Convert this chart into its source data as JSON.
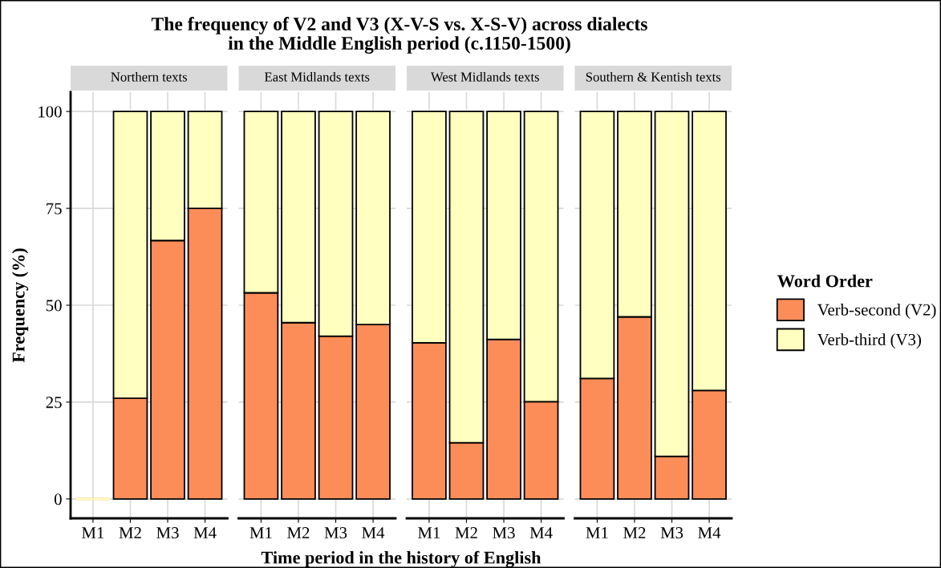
{
  "chart_data": [
    {
      "type": "bar",
      "title": "Northern texts",
      "annotations": [
        "The frequency of V2 and V3 (X-V-S vs. X-S-V) across dialects\nin the Middle English period (c.1150-1500)"
      ],
      "xlabel": "Time period in the history of English",
      "ylabel": "Frequency (%)",
      "categories": [
        "M1",
        "M2",
        "M3",
        "M4"
      ],
      "stacked": true,
      "ylim": [
        -5,
        105
      ],
      "yticks": [
        0,
        25,
        50,
        75,
        100
      ],
      "grid": true,
      "legend": "right",
      "legend_title": "Word Order",
      "series": [
        {
          "name": "Verb-second (V2)",
          "color": "#fc8d59",
          "values": [
            0,
            26,
            66.7,
            75
          ]
        },
        {
          "name": "Verb-third (V3)",
          "color": "#ffffbf",
          "values": [
            0,
            74,
            33.3,
            25
          ]
        }
      ]
    },
    {
      "type": "bar",
      "title": "East Midlands texts",
      "categories": [
        "M1",
        "M2",
        "M3",
        "M4"
      ],
      "stacked": true,
      "ylim": [
        -5,
        105
      ],
      "yticks": [
        0,
        25,
        50,
        75,
        100
      ],
      "grid": true,
      "tick_labels": "x",
      "series": [
        {
          "color": "#fc8d59",
          "values": [
            53.2,
            45.5,
            42,
            45
          ]
        },
        {
          "color": "#ffffbf",
          "values": [
            46.8,
            54.5,
            58,
            55
          ]
        }
      ]
    },
    {
      "type": "bar",
      "title": "West Midlands texts",
      "categories": [
        "M1",
        "M2",
        "M3",
        "M4"
      ],
      "stacked": true,
      "ylim": [
        -5,
        105
      ],
      "yticks": [
        0,
        25,
        50,
        75,
        100
      ],
      "grid": true,
      "tick_labels": "x",
      "series": [
        {
          "color": "#fc8d59",
          "values": [
            40.3,
            14.5,
            41.2,
            25.1
          ]
        },
        {
          "color": "#ffffbf",
          "values": [
            59.7,
            85.5,
            58.8,
            74.9
          ]
        }
      ]
    },
    {
      "type": "bar",
      "title": "Southern & Kentish texts",
      "categories": [
        "M1",
        "M2",
        "M3",
        "M4"
      ],
      "stacked": true,
      "ylim": [
        -5,
        105
      ],
      "yticks": [
        0,
        25,
        50,
        75,
        100
      ],
      "grid": true,
      "tick_labels": "x",
      "series": [
        {
          "color": "#fc8d59",
          "values": [
            31.1,
            47,
            11,
            28
          ]
        },
        {
          "color": "#ffffbf",
          "values": [
            68.9,
            53,
            89,
            72
          ]
        }
      ]
    }
  ]
}
